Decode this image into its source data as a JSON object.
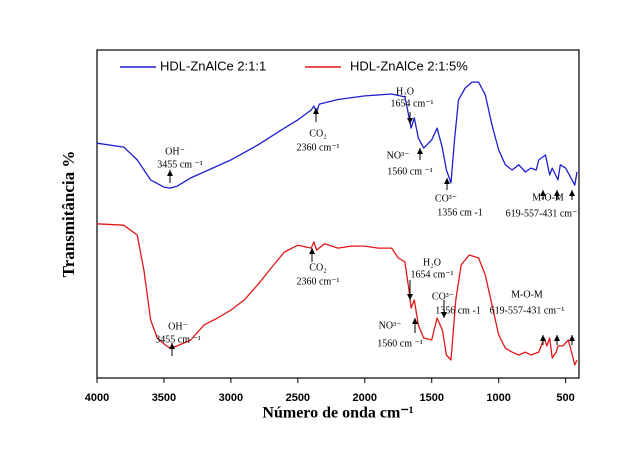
{
  "chart_data": {
    "type": "line",
    "ylabel": "Transmitância %",
    "xlabel": "Número de onda cm⁻¹",
    "xlim": [
      4000,
      400
    ],
    "ylim": [
      0,
      100
    ],
    "xticks": [
      4000,
      3500,
      3000,
      2500,
      2000,
      1500,
      1000,
      500
    ],
    "legend": "top-left",
    "series": [
      {
        "name": "HDL-ZnAlCe 2:1:1",
        "color": "#1f1fd0",
        "x": [
          4000,
          3800,
          3700,
          3600,
          3500,
          3455,
          3400,
          3300,
          3200,
          3000,
          2800,
          2600,
          2500,
          2400,
          2380,
          2360,
          2340,
          2200,
          2000,
          1800,
          1700,
          1680,
          1654,
          1630,
          1600,
          1560,
          1500,
          1460,
          1420,
          1390,
          1356,
          1330,
          1300,
          1250,
          1200,
          1150,
          1100,
          1050,
          1000,
          950,
          900,
          850,
          800,
          760,
          720,
          700,
          650,
          619,
          600,
          557,
          540,
          500,
          460,
          431,
          415
        ],
        "values": [
          71.6,
          70.4,
          66.5,
          60.4,
          58.2,
          57.9,
          58.5,
          61,
          62.8,
          66.5,
          71,
          76.2,
          78.7,
          81.7,
          82.9,
          81.1,
          83.5,
          84.9,
          86,
          86.6,
          85.7,
          81.7,
          76.2,
          79.3,
          73.2,
          70.1,
          72.6,
          76.2,
          70.1,
          63.4,
          59.5,
          72.6,
          84.8,
          88.4,
          90.2,
          90.2,
          86.3,
          77.1,
          69.5,
          65,
          63.4,
          65,
          62.8,
          64,
          63.4,
          66.5,
          68,
          61.9,
          64,
          60.4,
          65,
          64,
          61,
          58.8,
          62.8
        ]
      },
      {
        "name": "HDL-ZnAlCe 2:1:5%",
        "color": "#e01818",
        "x": [
          4000,
          3800,
          3700,
          3650,
          3600,
          3550,
          3500,
          3455,
          3400,
          3300,
          3200,
          3100,
          3000,
          2900,
          2800,
          2700,
          2600,
          2500,
          2400,
          2380,
          2360,
          2300,
          2200,
          2100,
          2000,
          1900,
          1800,
          1750,
          1700,
          1670,
          1654,
          1630,
          1600,
          1560,
          1500,
          1460,
          1420,
          1390,
          1356,
          1320,
          1280,
          1220,
          1150,
          1100,
          1050,
          1000,
          950,
          900,
          850,
          800,
          760,
          700,
          660,
          640,
          619,
          600,
          570,
          557,
          520,
          480,
          460,
          431,
          415
        ],
        "values": [
          47,
          46.6,
          43.6,
          32.9,
          17.7,
          12.2,
          10.4,
          9.1,
          9.8,
          11.6,
          16.2,
          18.3,
          20.7,
          23.8,
          28.4,
          33.5,
          38.4,
          40.5,
          39.6,
          41.5,
          39,
          40.9,
          39.6,
          40.2,
          40.2,
          39.6,
          39.6,
          36.6,
          35.4,
          26.8,
          21.3,
          23.8,
          16.2,
          12.2,
          11.6,
          18.3,
          14.6,
          7,
          5.5,
          23.8,
          34.5,
          37.5,
          36.6,
          31.4,
          22.3,
          13.1,
          9.1,
          7.9,
          7,
          7.9,
          7,
          7.9,
          12.2,
          9.8,
          12.2,
          6.1,
          7.9,
          9.8,
          9.8,
          11.6,
          8.5,
          4,
          5.5
        ]
      }
    ],
    "annotations": [
      "OH⁻",
      "3455 cm ⁻¹",
      "CO₂",
      "2360 cm⁻¹",
      "H₂O",
      "1654 cm⁻¹",
      "NO³⁻",
      "1560 cm ⁻¹",
      "CO³⁻",
      "1356 cm -1",
      "M-O-M",
      "619-557-431 cm⁻¹",
      "CO₂",
      "2360 cm⁻¹",
      "H₂O",
      "1654 cm⁻¹",
      "CO³⁻",
      "1356 cm -1",
      "NO³⁻",
      "1560 cm ⁻¹",
      "OH⁻",
      "3455 cm ⁻¹",
      "M-O-M",
      "619-557-431 cm⁻¹"
    ]
  }
}
